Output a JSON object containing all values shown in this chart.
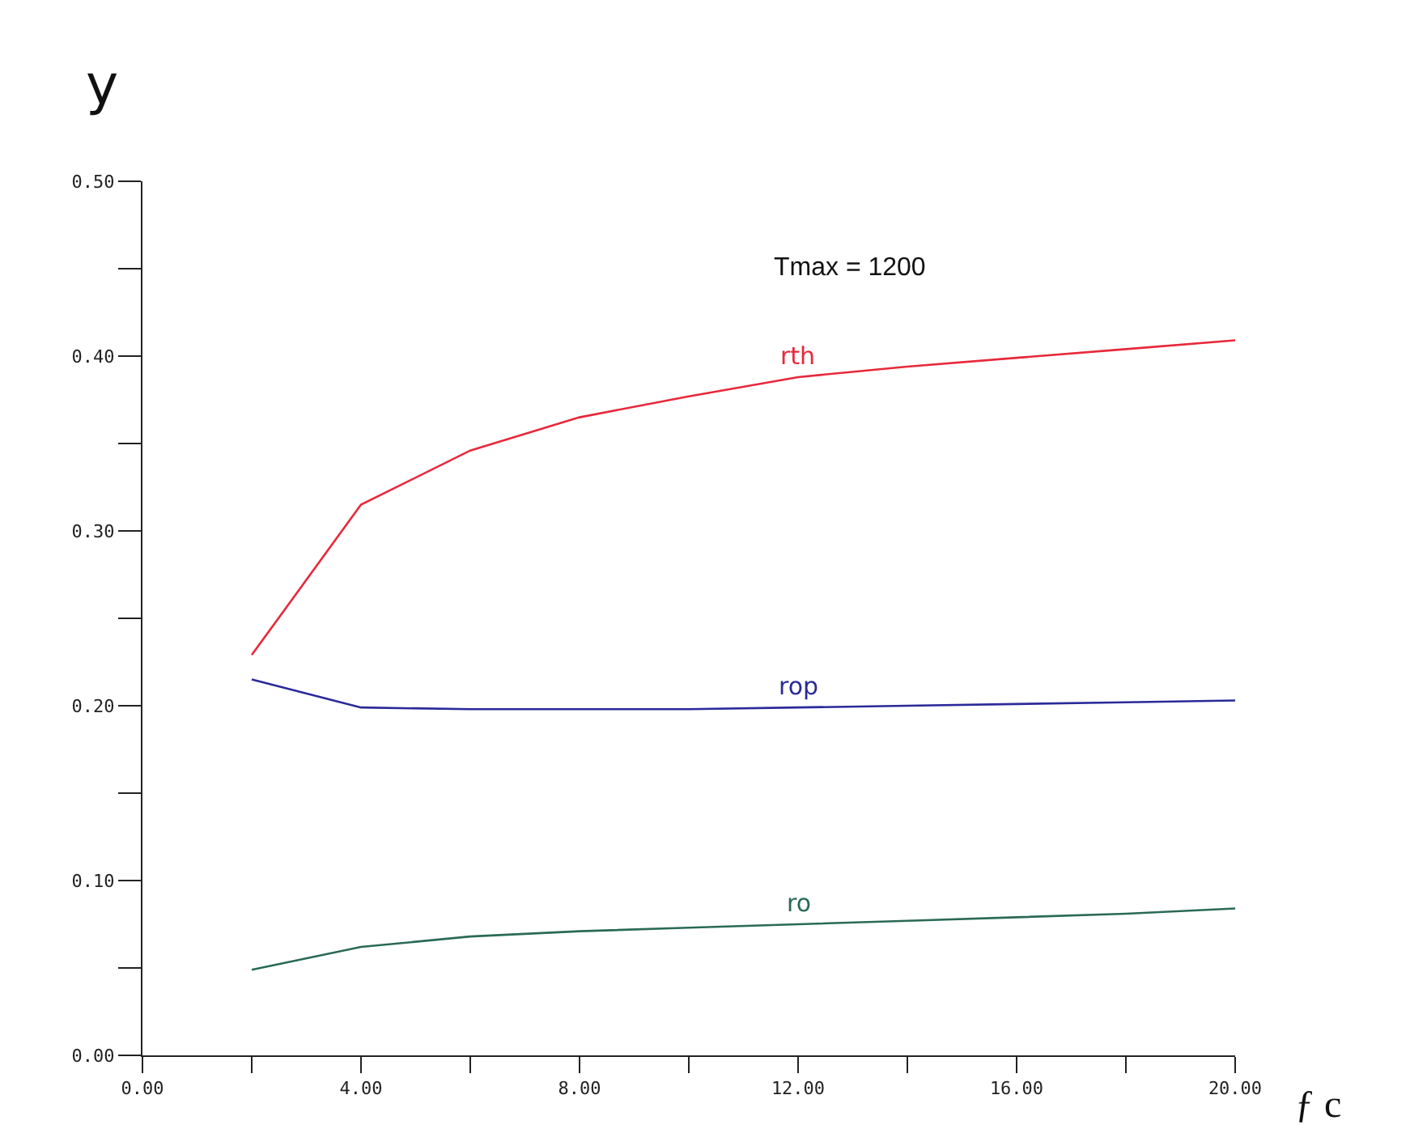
{
  "chart_data": {
    "type": "line",
    "xlabel": "ƒ c",
    "ylabel": "y",
    "annotations": [
      "Tmax = 1200"
    ],
    "x": [
      2,
      4,
      6,
      8,
      10,
      12,
      14,
      16,
      18,
      20
    ],
    "series": [
      {
        "name": "rth",
        "color": "#e8283a",
        "values": [
          0.229,
          0.315,
          0.346,
          0.365,
          0.377,
          0.388,
          0.394,
          0.399,
          0.404,
          0.409
        ]
      },
      {
        "name": "rop",
        "color": "#2a2a9a",
        "values": [
          0.215,
          0.199,
          0.198,
          0.198,
          0.198,
          0.199,
          0.2,
          0.201,
          0.202,
          0.203
        ]
      },
      {
        "name": "ro",
        "color": "#2a6a55",
        "values": [
          0.049,
          0.062,
          0.068,
          0.071,
          0.073,
          0.075,
          0.077,
          0.079,
          0.081,
          0.084
        ]
      }
    ],
    "xlim": [
      0,
      20
    ],
    "ylim": [
      0,
      0.5
    ],
    "xticks": [
      {
        "value": 0,
        "label": "0.00"
      },
      {
        "value": 2,
        "label": null
      },
      {
        "value": 4,
        "label": "4.00"
      },
      {
        "value": 6,
        "label": null
      },
      {
        "value": 8,
        "label": "8.00"
      },
      {
        "value": 10,
        "label": null
      },
      {
        "value": 12,
        "label": "12.00"
      },
      {
        "value": 14,
        "label": null
      },
      {
        "value": 16,
        "label": "16.00"
      },
      {
        "value": 18,
        "label": null
      },
      {
        "value": 20,
        "label": "20.00"
      }
    ],
    "yticks": [
      {
        "value": 0,
        "label": "0.00"
      },
      {
        "value": 0.05,
        "label": null
      },
      {
        "value": 0.1,
        "label": "0.10"
      },
      {
        "value": 0.15,
        "label": null
      },
      {
        "value": 0.2,
        "label": "0.20"
      },
      {
        "value": 0.25,
        "label": null
      },
      {
        "value": 0.3,
        "label": "0.30"
      },
      {
        "value": 0.35,
        "label": null
      },
      {
        "value": 0.4,
        "label": "0.40"
      },
      {
        "value": 0.45,
        "label": null
      },
      {
        "value": 0.5,
        "label": "0.50"
      }
    ],
    "grid": false,
    "legend": false,
    "marker": "none",
    "line_style": "solid"
  }
}
